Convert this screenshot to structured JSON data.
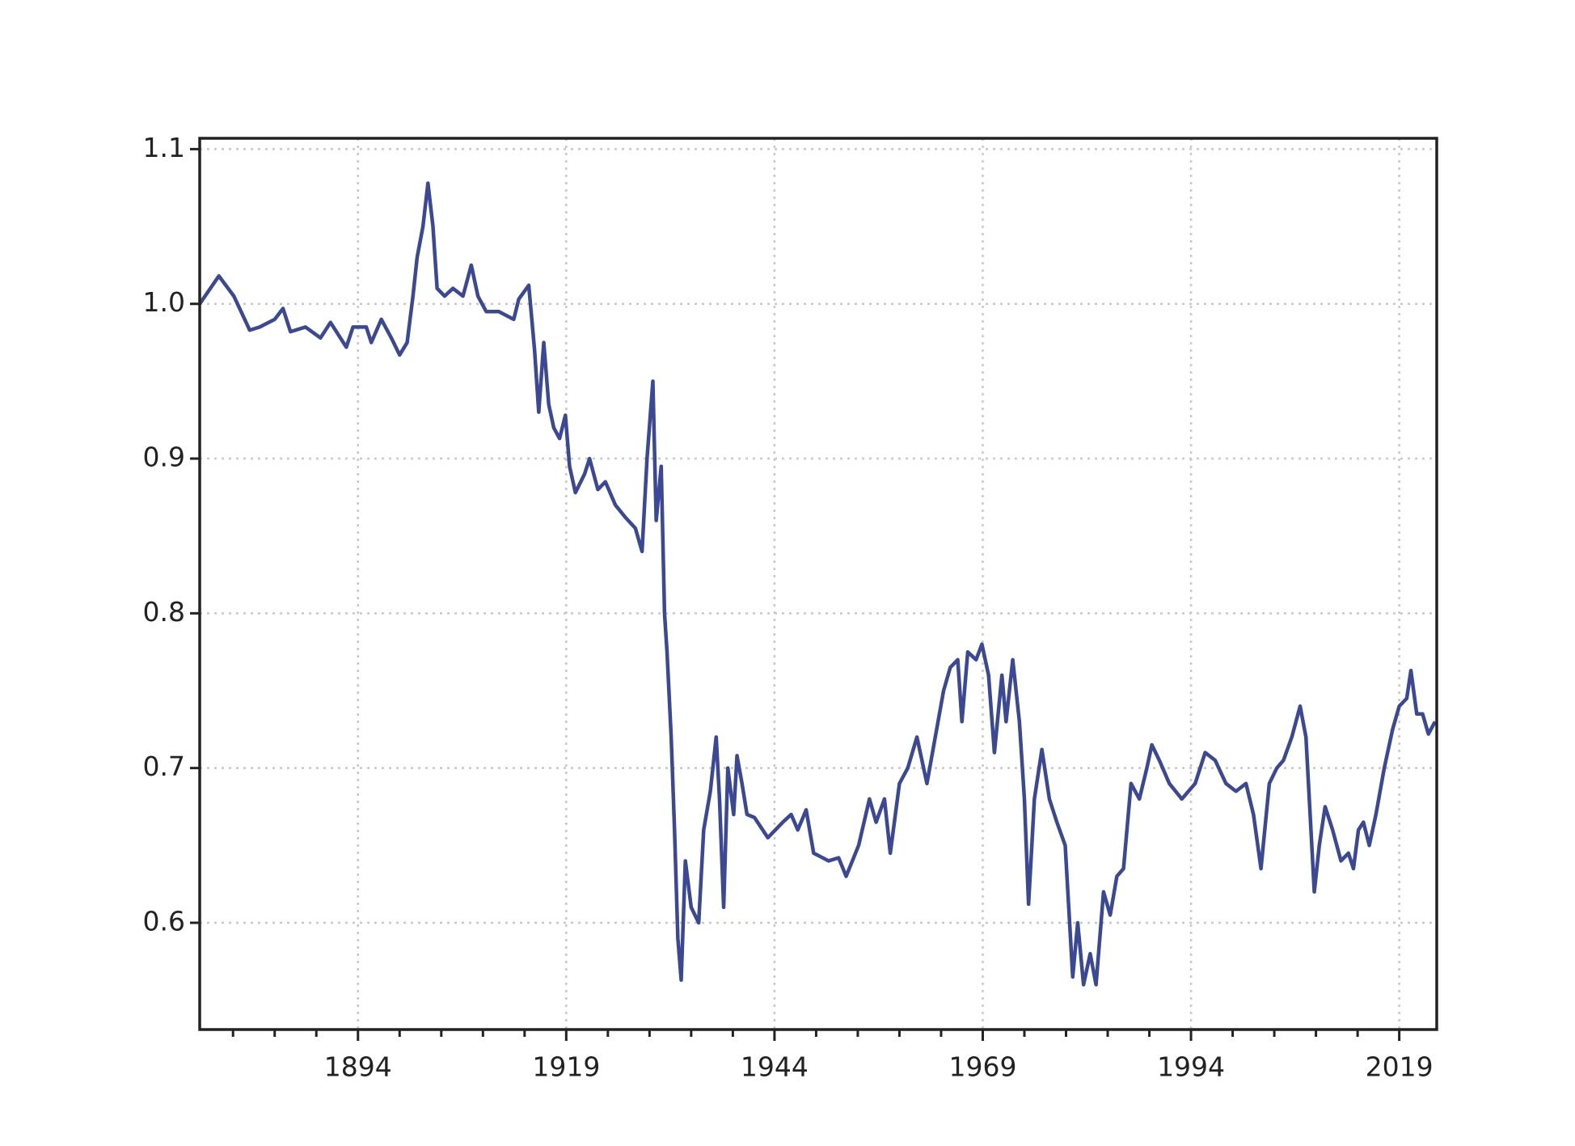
{
  "chart_data": {
    "type": "line",
    "x": [
      1875,
      1877.3,
      1879.1,
      1880.4,
      1881,
      1882.2,
      1884,
      1885,
      1885.9,
      1887.7,
      1889.5,
      1890.7,
      1892.6,
      1893.4,
      1895,
      1895.6,
      1896.8,
      1898,
      1899,
      1899.9,
      1900.6,
      1901.1,
      1901.8,
      1902.4,
      1903,
      1903.5,
      1904.4,
      1905.4,
      1906.6,
      1907.6,
      1908.4,
      1909.4,
      1910.9,
      1912.7,
      1913.3,
      1914.5,
      1915.2,
      1915.7,
      1916.3,
      1916.9,
      1917.5,
      1918.2,
      1918.9,
      1919.4,
      1920.1,
      1921.2,
      1921.8,
      1922.8,
      1923.7,
      1924.9,
      1926.1,
      1927.3,
      1928.1,
      1928.7,
      1929.4,
      1929.8,
      1930.4,
      1930.8,
      1931.1,
      1931.6,
      1932,
      1932.4,
      1932.8,
      1933.3,
      1934,
      1934.9,
      1935.5,
      1936.3,
      1937,
      1937.4,
      1937.9,
      1938.4,
      1939.1,
      1939.5,
      1940.1,
      1940.7,
      1941.6,
      1943.2,
      1945,
      1946,
      1946.8,
      1947.8,
      1948.7,
      1950.5,
      1951.7,
      1952.6,
      1954.1,
      1955.4,
      1956.2,
      1957.2,
      1957.9,
      1959,
      1960,
      1961.1,
      1962.3,
      1963.3,
      1964.3,
      1965.1,
      1966,
      1966.5,
      1967.2,
      1968.2,
      1968.9,
      1969.7,
      1970.4,
      1971.3,
      1971.8,
      1972.6,
      1973.4,
      1974,
      1974.5,
      1975.2,
      1976.1,
      1977,
      1977.9,
      1978.9,
      1979.8,
      1980.4,
      1981.1,
      1981.9,
      1982.6,
      1983.5,
      1984.3,
      1985.1,
      1985.9,
      1986.8,
      1987.8,
      1988.7,
      1989.3,
      1990.2,
      1991.4,
      1992.9,
      1994.5,
      1995.7,
      1996.9,
      1998.2,
      1999.4,
      2000.6,
      2001.5,
      2002.4,
      2003.4,
      2004.3,
      2005.1,
      2006.1,
      2007.1,
      2007.8,
      2008.3,
      2008.8,
      2009.4,
      2010.1,
      2011,
      2012,
      2012.9,
      2013.5,
      2014.1,
      2014.7,
      2015.4,
      2016.2,
      2017.2,
      2018.2,
      2019,
      2019.9,
      2020.4,
      2021.1,
      2021.8,
      2022.5,
      2023.3
    ],
    "series": [
      {
        "color": "#3a4895",
        "values": [
          1.0,
          1.018,
          1.005,
          0.99,
          0.983,
          0.985,
          0.99,
          0.997,
          0.982,
          0.985,
          0.978,
          0.988,
          0.972,
          0.985,
          0.985,
          0.975,
          0.99,
          0.978,
          0.967,
          0.975,
          1.005,
          1.03,
          1.05,
          1.078,
          1.05,
          1.01,
          1.005,
          1.01,
          1.005,
          1.025,
          1.005,
          0.995,
          0.995,
          0.99,
          1.003,
          1.012,
          0.97,
          0.93,
          0.975,
          0.935,
          0.92,
          0.913,
          0.928,
          0.895,
          0.878,
          0.89,
          0.9,
          0.88,
          0.885,
          0.87,
          0.862,
          0.855,
          0.84,
          0.9,
          0.95,
          0.86,
          0.895,
          0.8,
          0.775,
          0.72,
          0.66,
          0.59,
          0.563,
          0.64,
          0.61,
          0.6,
          0.66,
          0.685,
          0.72,
          0.68,
          0.61,
          0.7,
          0.67,
          0.708,
          0.69,
          0.67,
          0.668,
          0.655,
          0.665,
          0.67,
          0.66,
          0.673,
          0.645,
          0.64,
          0.642,
          0.63,
          0.65,
          0.68,
          0.665,
          0.68,
          0.645,
          0.69,
          0.7,
          0.72,
          0.69,
          0.72,
          0.75,
          0.765,
          0.77,
          0.73,
          0.775,
          0.77,
          0.78,
          0.76,
          0.71,
          0.76,
          0.73,
          0.77,
          0.73,
          0.68,
          0.612,
          0.68,
          0.712,
          0.68,
          0.665,
          0.65,
          0.565,
          0.6,
          0.56,
          0.58,
          0.56,
          0.62,
          0.605,
          0.63,
          0.635,
          0.69,
          0.68,
          0.7,
          0.715,
          0.705,
          0.69,
          0.68,
          0.69,
          0.71,
          0.705,
          0.69,
          0.685,
          0.69,
          0.67,
          0.635,
          0.69,
          0.7,
          0.705,
          0.72,
          0.74,
          0.72,
          0.67,
          0.62,
          0.65,
          0.675,
          0.66,
          0.64,
          0.645,
          0.635,
          0.66,
          0.665,
          0.65,
          0.67,
          0.7,
          0.725,
          0.74,
          0.745,
          0.763,
          0.735,
          0.735,
          0.722,
          0.73
        ]
      }
    ],
    "xlim": [
      1875,
      2023.5
    ],
    "xticks": [
      1894,
      1919,
      1944,
      1969,
      1994,
      2019
    ],
    "xminorticks": [
      1879,
      1884,
      1889,
      1899,
      1904,
      1909,
      1914,
      1924,
      1929,
      1934,
      1939,
      1949,
      1954,
      1959,
      1964,
      1974,
      1979,
      1984,
      1989,
      1999,
      2004,
      2009,
      2014
    ],
    "ylim": [
      0.531,
      1.107
    ],
    "yticks": [
      0.6,
      0.7,
      0.8,
      0.9,
      {
        "value": 1,
        "label": "1.0"
      },
      1.1
    ],
    "grid": true
  }
}
